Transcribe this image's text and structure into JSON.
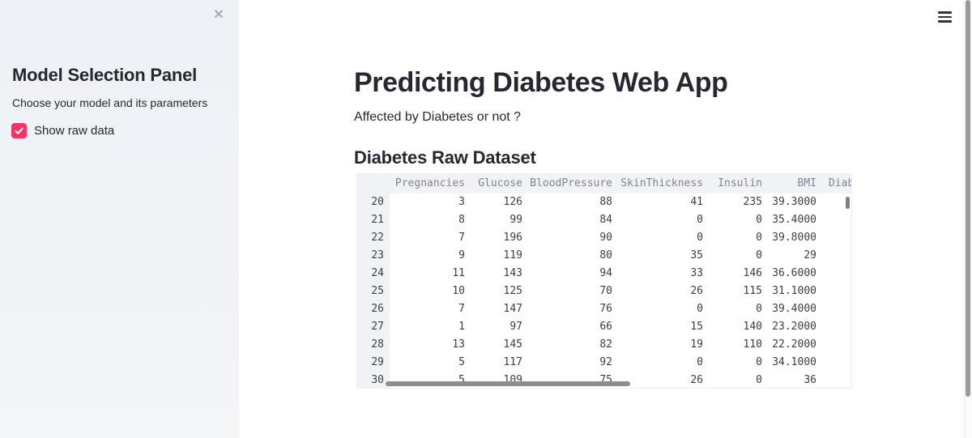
{
  "sidebar": {
    "title": "Model Selection Panel",
    "subtitle": "Choose your model and its parameters",
    "checkbox": {
      "label": "Show raw data",
      "checked": true
    },
    "close_icon": "✕"
  },
  "header": {
    "menu_icon": "hamburger-icon"
  },
  "main": {
    "title": "Predicting Diabetes Web App",
    "subtitle": "Affected by Diabetes or not ?",
    "section_heading": "Diabetes Raw Dataset"
  },
  "table": {
    "columns": [
      "",
      "Pregnancies",
      "Glucose",
      "BloodPressure",
      "SkinThickness",
      "Insulin",
      "BMI",
      "Diab"
    ],
    "rows": [
      {
        "index": "20",
        "values": [
          "3",
          "126",
          "88",
          "41",
          "235",
          "39.3000"
        ]
      },
      {
        "index": "21",
        "values": [
          "8",
          "99",
          "84",
          "0",
          "0",
          "35.4000"
        ]
      },
      {
        "index": "22",
        "values": [
          "7",
          "196",
          "90",
          "0",
          "0",
          "39.8000"
        ]
      },
      {
        "index": "23",
        "values": [
          "9",
          "119",
          "80",
          "35",
          "0",
          "29"
        ]
      },
      {
        "index": "24",
        "values": [
          "11",
          "143",
          "94",
          "33",
          "146",
          "36.6000"
        ]
      },
      {
        "index": "25",
        "values": [
          "10",
          "125",
          "70",
          "26",
          "115",
          "31.1000"
        ]
      },
      {
        "index": "26",
        "values": [
          "7",
          "147",
          "76",
          "0",
          "0",
          "39.4000"
        ]
      },
      {
        "index": "27",
        "values": [
          "1",
          "97",
          "66",
          "15",
          "140",
          "23.2000"
        ]
      },
      {
        "index": "28",
        "values": [
          "13",
          "145",
          "82",
          "19",
          "110",
          "22.2000"
        ]
      },
      {
        "index": "29",
        "values": [
          "5",
          "117",
          "92",
          "0",
          "0",
          "34.1000"
        ]
      },
      {
        "index": "30",
        "values": [
          "5",
          "109",
          "75",
          "26",
          "0",
          "36"
        ]
      }
    ]
  },
  "colors": {
    "primary": "#f63366",
    "sidebar_bg": "#f0f2f6",
    "table_muted_text": "#808495",
    "table_cell_text": "#3c3e46",
    "heading_text": "#262730"
  }
}
